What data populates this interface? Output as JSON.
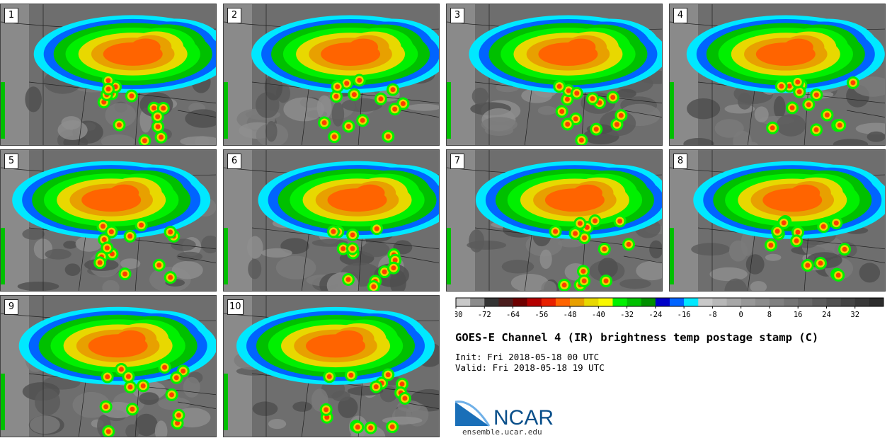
{
  "panels": [
    {
      "label": "1"
    },
    {
      "label": "2"
    },
    {
      "label": "3"
    },
    {
      "label": "4"
    },
    {
      "label": "5"
    },
    {
      "label": "6"
    },
    {
      "label": "7"
    },
    {
      "label": "8"
    },
    {
      "label": "9"
    },
    {
      "label": "10"
    }
  ],
  "title": "GOES-E Channel 4 (IR) brightness temp postage stamp (C)",
  "init_line": "Init: Fri 2018-05-18 00 UTC",
  "valid_line": "Valid: Fri 2018-05-18 19 UTC",
  "colorbar": {
    "ticks": [
      "-80",
      "-72",
      "-64",
      "-56",
      "-48",
      "-40",
      "-32",
      "-24",
      "-16",
      "-8",
      "0",
      "8",
      "16",
      "24",
      "32"
    ],
    "colors": [
      "#c8c8c8",
      "#8c8c8c",
      "#343434",
      "#4a1e1e",
      "#6e0000",
      "#b40000",
      "#e82000",
      "#ff6400",
      "#e8a000",
      "#e8d800",
      "#f8f800",
      "#00f000",
      "#00c000",
      "#009000",
      "#0000c8",
      "#0064ff",
      "#00e8ff",
      "#c8c8c8",
      "#b8b8b8",
      "#a8a8a8",
      "#989898",
      "#8c8c8c",
      "#808080",
      "#747474",
      "#686868",
      "#5c5c5c",
      "#505050",
      "#444444",
      "#383838",
      "#2c2c2c"
    ]
  },
  "logo": {
    "text": "NCAR",
    "site": "ensemble.ucar.edu",
    "color": "#0a4f8a"
  }
}
